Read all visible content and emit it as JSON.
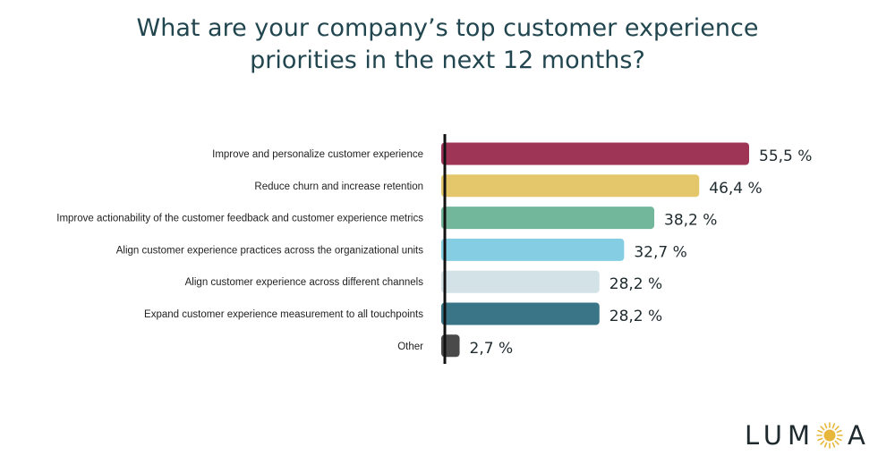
{
  "chart_data": {
    "type": "bar",
    "orientation": "horizontal",
    "title_lines": [
      "What are your company’s top customer experience",
      "priorities in the next 12 months?"
    ],
    "categories": [
      "Improve and personalize customer experience",
      "Reduce churn and increase retention",
      "Improve actionability of the customer feedback and customer experience metrics",
      "Align customer experience practices across the organizational units",
      "Align customer experience across different channels",
      "Expand customer experience measurement to all touchpoints",
      "Other"
    ],
    "values": [
      55.5,
      46.4,
      38.2,
      32.7,
      28.2,
      28.2,
      2.7
    ],
    "value_labels": [
      "55,5 %",
      "46,4 %",
      "38,2 %",
      "32,7 %",
      "28,2 %",
      "28,2 %",
      "2,7 %"
    ],
    "colors": [
      "#9e3556",
      "#e3c76a",
      "#72b69b",
      "#85cde3",
      "#d3e2e6",
      "#397587",
      "#4a4a4a"
    ],
    "xlim": [
      0,
      55.5
    ],
    "grid": false,
    "legend": "none"
  },
  "brand": {
    "logo_text_left": "LUM",
    "logo_text_right": "A",
    "logo_color": "#1f2a2e",
    "sun_color": "#e6b73a"
  }
}
